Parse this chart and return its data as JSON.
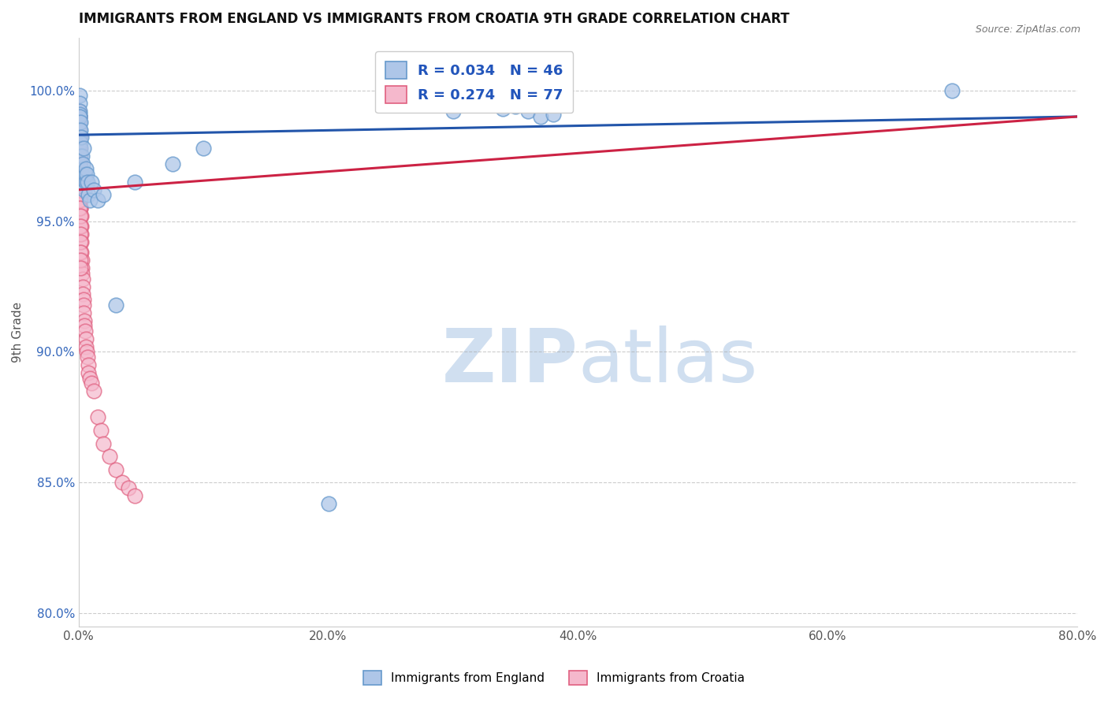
{
  "title": "IMMIGRANTS FROM ENGLAND VS IMMIGRANTS FROM CROATIA 9TH GRADE CORRELATION CHART",
  "source": "Source: ZipAtlas.com",
  "ylabel": "9th Grade",
  "xmin": 0.0,
  "xmax": 80.0,
  "ymin": 79.5,
  "ymax": 102.0,
  "yticks": [
    80.0,
    85.0,
    90.0,
    95.0,
    100.0
  ],
  "ytick_labels": [
    "80.0%",
    "85.0%",
    "90.0%",
    "95.0%",
    "100.0%"
  ],
  "xticks": [
    0.0,
    20.0,
    40.0,
    60.0,
    80.0
  ],
  "xtick_labels": [
    "0.0%",
    "20.0%",
    "40.0%",
    "60.0%",
    "80.0%"
  ],
  "england_R": 0.034,
  "england_N": 46,
  "croatia_R": 0.274,
  "croatia_N": 77,
  "england_color": "#aec6e8",
  "england_edge": "#6699cc",
  "croatia_color": "#f5b8cc",
  "croatia_edge": "#e06080",
  "england_trend_color": "#2255aa",
  "croatia_trend_color": "#cc2244",
  "watermark_color": "#d0dff0",
  "england_x": [
    0.05,
    0.05,
    0.06,
    0.07,
    0.08,
    0.08,
    0.09,
    0.1,
    0.1,
    0.11,
    0.12,
    0.13,
    0.15,
    0.17,
    0.2,
    0.22,
    0.25,
    0.27,
    0.3,
    0.35,
    0.4,
    0.45,
    0.5,
    0.55,
    0.6,
    0.65,
    0.7,
    0.8,
    0.9,
    1.0,
    1.2,
    1.5,
    2.0,
    3.0,
    4.5,
    7.5,
    10.0,
    20.0,
    30.0,
    33.0,
    34.0,
    35.0,
    36.0,
    37.0,
    38.0,
    70.0
  ],
  "england_y": [
    99.8,
    99.5,
    99.2,
    99.0,
    98.8,
    99.1,
    98.5,
    99.0,
    98.2,
    98.8,
    98.5,
    98.0,
    97.8,
    97.5,
    97.0,
    98.2,
    97.5,
    96.8,
    97.2,
    96.5,
    97.8,
    96.2,
    96.8,
    96.5,
    97.0,
    96.8,
    96.5,
    96.0,
    95.8,
    96.5,
    96.2,
    95.8,
    96.0,
    91.8,
    96.5,
    97.2,
    97.8,
    84.2,
    99.2,
    99.5,
    99.3,
    99.4,
    99.2,
    99.0,
    99.1,
    100.0
  ],
  "croatia_x": [
    0.02,
    0.03,
    0.04,
    0.04,
    0.05,
    0.05,
    0.06,
    0.06,
    0.07,
    0.07,
    0.08,
    0.08,
    0.09,
    0.09,
    0.1,
    0.1,
    0.11,
    0.11,
    0.12,
    0.12,
    0.13,
    0.14,
    0.15,
    0.15,
    0.16,
    0.17,
    0.18,
    0.19,
    0.2,
    0.2,
    0.22,
    0.24,
    0.25,
    0.27,
    0.3,
    0.32,
    0.35,
    0.38,
    0.4,
    0.42,
    0.45,
    0.48,
    0.5,
    0.55,
    0.6,
    0.65,
    0.7,
    0.75,
    0.8,
    0.9,
    1.0,
    1.2,
    1.5,
    1.8,
    2.0,
    2.5,
    3.0,
    3.5,
    4.0,
    4.5,
    0.03,
    0.03,
    0.04,
    0.05,
    0.06,
    0.07,
    0.08,
    0.09,
    0.1,
    0.1,
    0.11,
    0.12,
    0.13,
    0.14,
    0.15,
    0.16,
    0.17
  ],
  "croatia_y": [
    99.2,
    99.0,
    98.8,
    98.5,
    98.2,
    99.0,
    97.8,
    98.5,
    97.5,
    98.2,
    97.2,
    97.8,
    96.8,
    97.5,
    96.5,
    97.2,
    96.2,
    96.8,
    95.8,
    96.5,
    95.5,
    96.2,
    95.2,
    96.0,
    94.8,
    95.5,
    94.5,
    95.2,
    94.2,
    94.8,
    93.8,
    93.5,
    93.2,
    93.0,
    92.8,
    92.5,
    92.2,
    92.0,
    91.8,
    91.5,
    91.2,
    91.0,
    90.8,
    90.5,
    90.2,
    90.0,
    89.8,
    89.5,
    89.2,
    89.0,
    88.8,
    88.5,
    87.5,
    87.0,
    86.5,
    86.0,
    85.5,
    85.0,
    84.8,
    84.5,
    98.5,
    98.2,
    97.8,
    97.5,
    97.2,
    96.8,
    96.5,
    96.2,
    95.8,
    95.5,
    95.2,
    94.8,
    94.5,
    94.2,
    93.8,
    93.5,
    93.2
  ]
}
